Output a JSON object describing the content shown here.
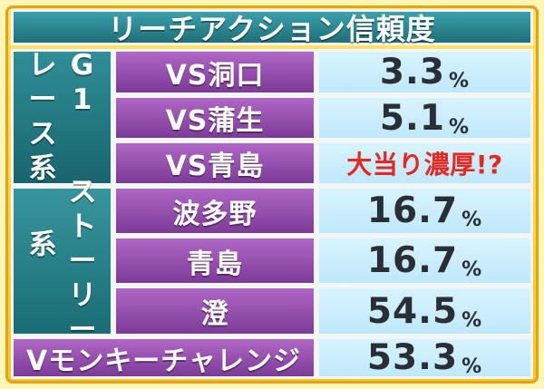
{
  "title": "リーチアクション信頼度",
  "groups": {
    "g1": {
      "col1": [
        "レ",
        "ー",
        "ス",
        "系"
      ],
      "col2": [
        "G",
        "1"
      ]
    },
    "story": {
      "col1": [
        "系"
      ],
      "col2": [
        "ス",
        "ト",
        "ー",
        "リ",
        "ー"
      ]
    }
  },
  "rows": [
    {
      "label": "VS洞口",
      "value_main": "3.3",
      "value_unit": "%"
    },
    {
      "label": "VS蒲生",
      "value_main": "5.1",
      "value_unit": "%"
    },
    {
      "label": "VS青島",
      "special": "大当り濃厚!?"
    },
    {
      "label": "波多野",
      "value_main": "16.7",
      "value_unit": "%"
    },
    {
      "label": "青島",
      "value_main": "16.7",
      "value_unit": "%"
    },
    {
      "label": "澄",
      "value_main": "54.5",
      "value_unit": "%"
    },
    {
      "label": "Vモンキーチャレンジ",
      "value_main": "53.3",
      "value_unit": "%"
    }
  ],
  "colors": {
    "background": "#fff6b8",
    "frame": "#f6c52d",
    "teal": "#2f8e98",
    "purple": "#7c3a97",
    "value_bg": "#cceeff",
    "special_red": "#e52822"
  }
}
